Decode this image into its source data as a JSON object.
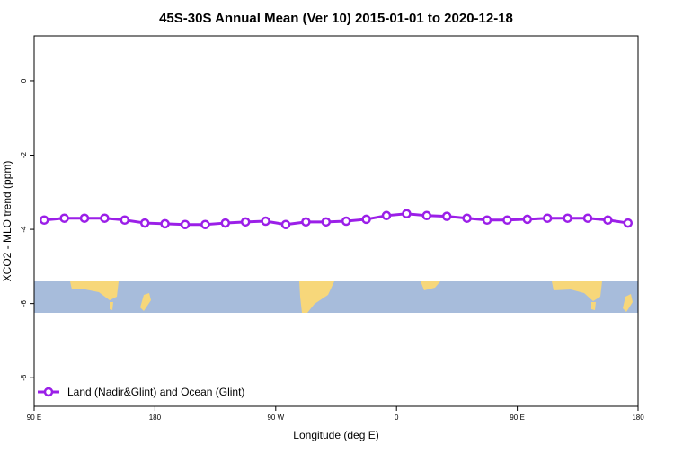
{
  "chart_data": {
    "type": "line",
    "title": "45S-30S Annual Mean (Ver 10)   2015-01-01 to 2020-12-18",
    "x_label": "Longitude (deg E)",
    "y_label": "XCO2 - MLO trend (ppm)",
    "x": [
      97.5,
      112.5,
      127.5,
      142.5,
      157.5,
      172.5,
      187.5,
      202.5,
      217.5,
      232.5,
      247.5,
      262.5,
      277.5,
      292.5,
      307.5,
      322.5,
      337.5,
      352.5,
      367.5,
      382.5,
      397.5,
      412.5,
      427.5,
      442.5,
      457.5,
      472.5,
      487.5,
      502.5,
      517.5,
      532.5
    ],
    "series": [
      {
        "name": "Land (Nadir&Glint) and Ocean (Glint)",
        "color": "#9b1fe8",
        "values": [
          -3.75,
          -3.7,
          -3.7,
          -3.7,
          -3.75,
          -3.83,
          -3.85,
          -3.87,
          -3.87,
          -3.83,
          -3.8,
          -3.78,
          -3.87,
          -3.8,
          -3.8,
          -3.78,
          -3.73,
          -3.63,
          -3.58,
          -3.63,
          -3.65,
          -3.7,
          -3.75,
          -3.75,
          -3.73,
          -3.7,
          -3.7,
          -3.7,
          -3.75,
          -3.83
        ]
      }
    ],
    "xlim": [
      90,
      540
    ],
    "xticks": [
      {
        "value": 90,
        "label": "90 E"
      },
      180,
      {
        "value": 270,
        "label": "90 W"
      },
      {
        "value": 360,
        "label": "0"
      },
      {
        "value": 450,
        "label": "90 E"
      },
      {
        "value": 540,
        "label": "180"
      }
    ],
    "ylim": [
      -8.77,
      1.21
    ],
    "yticks": [
      0,
      -2,
      -4,
      -6,
      -8
    ],
    "legend": "bottom-left"
  }
}
